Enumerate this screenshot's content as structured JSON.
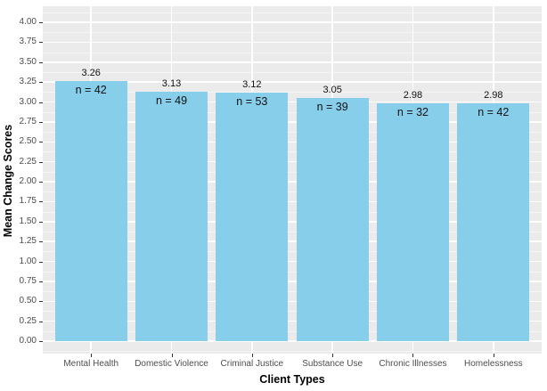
{
  "chart_data": {
    "type": "bar",
    "title": "",
    "xlabel": "Client Types",
    "ylabel": "Mean Change Scores",
    "categories": [
      "Mental Health",
      "Domestic Violence",
      "Criminal Justice",
      "Substance Use",
      "Chronic Illnesses",
      "Homelessness"
    ],
    "values": [
      3.26,
      3.13,
      3.12,
      3.05,
      2.98,
      2.98
    ],
    "n_labels": [
      "n = 42",
      "n = 49",
      "n = 53",
      "n = 39",
      "n = 32",
      "n = 42"
    ],
    "counts": [
      42,
      49,
      53,
      39,
      32,
      42
    ],
    "ylim": [
      0,
      4.2
    ],
    "y_break_min": 0,
    "y_break_max": 4,
    "y_major_step": 0.25,
    "y_tick_decimals": 2,
    "grid": "major-and-minor",
    "legend_position": "none",
    "bar_color": "#87CEEB",
    "panel_bg": "#EBEBEB",
    "gridline_color": "#FFFFFF",
    "tick_label_color": "#4D4D4D",
    "axis_title_color": "#000000"
  }
}
